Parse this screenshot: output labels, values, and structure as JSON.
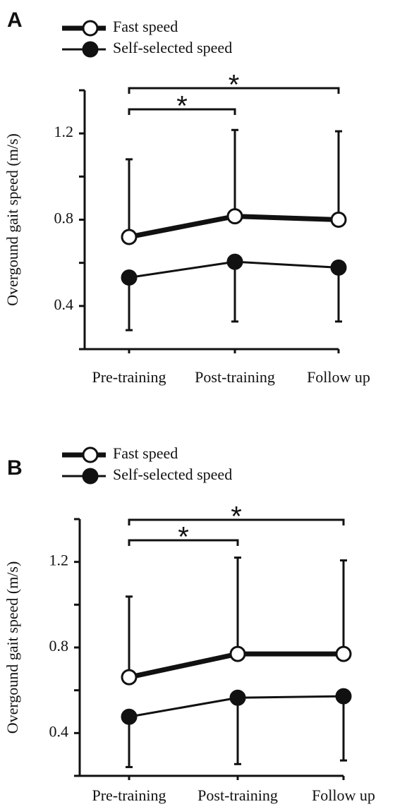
{
  "chart_data": [
    {
      "type": "line",
      "panel": "A",
      "y_label": "Overgound gait speed (m/s)",
      "categories": [
        "Pre-training",
        "Post-training",
        "Follow up"
      ],
      "series": [
        {
          "name": "Fast speed",
          "color": "#111111",
          "marker": "open",
          "values": [
            0.72,
            0.816,
            0.8
          ],
          "errors": [
            0.36,
            0.4,
            0.41
          ],
          "error_direction": "up"
        },
        {
          "name": "Self-selected speed",
          "color": "#111111",
          "marker": "filled",
          "values": [
            0.532,
            0.605,
            0.578
          ],
          "errors": [
            0.244,
            0.277,
            0.25
          ],
          "error_direction": "down"
        }
      ],
      "ylim": [
        0.2,
        1.4
      ],
      "yticks": [
        0.4,
        0.8,
        1.2
      ],
      "yminor_ticks": [
        0.2,
        0.6,
        1.0,
        1.4
      ],
      "annotations": [
        {
          "text": "*",
          "from": 0,
          "to": 1
        },
        {
          "text": "*",
          "from": 0,
          "to": 2
        }
      ]
    },
    {
      "type": "line",
      "panel": "B",
      "y_label": "Overgound gait speed (m/s)",
      "categories": [
        "Pre-training",
        "Post-training",
        "Follow up"
      ],
      "series": [
        {
          "name": "Fast speed",
          "color": "#111111",
          "marker": "open",
          "values": [
            0.661,
            0.77,
            0.77
          ],
          "errors": [
            0.377,
            0.45,
            0.437
          ],
          "error_direction": "up"
        },
        {
          "name": "Self-selected speed",
          "color": "#111111",
          "marker": "filled",
          "values": [
            0.476,
            0.565,
            0.572
          ],
          "errors": [
            0.235,
            0.31,
            0.3
          ],
          "error_direction": "down"
        }
      ],
      "ylim": [
        0.2,
        1.4
      ],
      "yticks": [
        0.4,
        0.8,
        1.2
      ],
      "yminor_ticks": [
        0.2,
        0.6,
        1.0,
        1.4
      ],
      "annotations": [
        {
          "text": "*",
          "from": 0,
          "to": 1
        },
        {
          "text": "*",
          "from": 0,
          "to": 2
        }
      ]
    }
  ]
}
